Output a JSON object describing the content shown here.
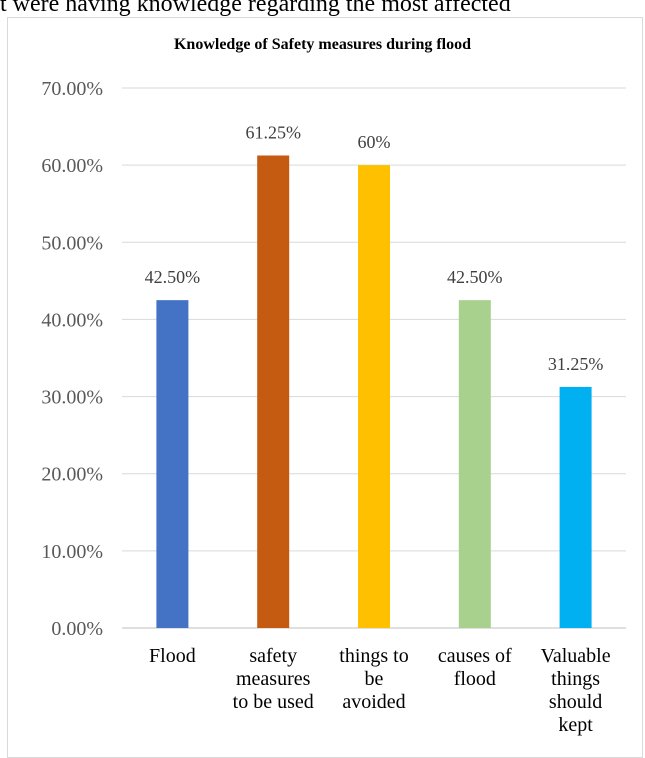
{
  "top_text": "t were having knowledge regarding the most affected",
  "chart_data": {
    "type": "bar",
    "title": "Knowledge of Safety measures during flood",
    "xlabel": "",
    "ylabel": "",
    "categories": [
      [
        "Flood"
      ],
      [
        "safety",
        "measures",
        "to be used"
      ],
      [
        "things to",
        "be",
        "avoided"
      ],
      [
        "causes of",
        "flood"
      ],
      [
        "Valuable",
        "things",
        "should",
        "kept"
      ]
    ],
    "values": [
      42.5,
      61.25,
      60,
      42.5,
      31.25
    ],
    "data_labels": [
      "42.50%",
      "61.25%",
      "60%",
      "42.50%",
      "31.25%"
    ],
    "colors": [
      "#4472c4",
      "#c55a11",
      "#ffc000",
      "#a9d18e",
      "#00b0f0"
    ],
    "ylim": [
      0,
      70
    ],
    "yticks": [
      "0.00%",
      "10.00%",
      "20.00%",
      "30.00%",
      "40.00%",
      "50.00%",
      "60.00%",
      "70.00%"
    ],
    "grid": true,
    "legend": "none"
  }
}
